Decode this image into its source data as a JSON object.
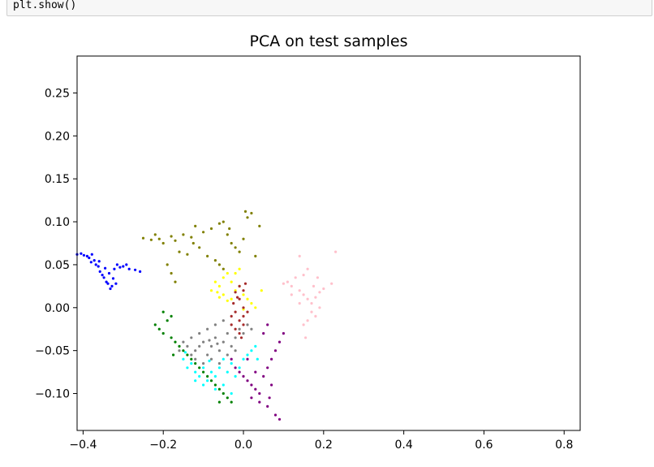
{
  "code": {
    "line": "plt.show()"
  },
  "chart_data": {
    "type": "scatter",
    "title": "PCA on test samples",
    "xlabel": "",
    "ylabel": "",
    "xlim": [
      -0.415,
      0.84
    ],
    "ylim": [
      -0.143,
      0.293
    ],
    "x_ticks": [
      {
        "value": -0.4,
        "label": "−0.4"
      },
      {
        "value": -0.2,
        "label": "−0.2"
      },
      {
        "value": 0.0,
        "label": "0.0"
      },
      {
        "value": 0.2,
        "label": "0.2"
      },
      {
        "value": 0.4,
        "label": "0.4"
      },
      {
        "value": 0.6,
        "label": "0.6"
      },
      {
        "value": 0.8,
        "label": "0.8"
      }
    ],
    "y_ticks": [
      {
        "value": -0.1,
        "label": "−0.10"
      },
      {
        "value": -0.05,
        "label": "−0.05"
      },
      {
        "value": 0.0,
        "label": "0.00"
      },
      {
        "value": 0.05,
        "label": "0.05"
      },
      {
        "value": 0.1,
        "label": "0.10"
      },
      {
        "value": 0.15,
        "label": "0.15"
      },
      {
        "value": 0.2,
        "label": "0.20"
      },
      {
        "value": 0.25,
        "label": "0.25"
      }
    ],
    "series": [
      {
        "name": "blue",
        "color": "#0000ff",
        "points": [
          [
            -0.415,
            0.062
          ],
          [
            -0.405,
            0.063
          ],
          [
            -0.398,
            0.061
          ],
          [
            -0.39,
            0.06
          ],
          [
            -0.385,
            0.058
          ],
          [
            -0.378,
            0.062
          ],
          [
            -0.372,
            0.055
          ],
          [
            -0.368,
            0.05
          ],
          [
            -0.362,
            0.048
          ],
          [
            -0.358,
            0.042
          ],
          [
            -0.352,
            0.038
          ],
          [
            -0.348,
            0.035
          ],
          [
            -0.342,
            0.03
          ],
          [
            -0.338,
            0.028
          ],
          [
            -0.332,
            0.022
          ],
          [
            -0.328,
            0.025
          ],
          [
            -0.322,
            0.045
          ],
          [
            -0.315,
            0.05
          ],
          [
            -0.308,
            0.047
          ],
          [
            -0.3,
            0.048
          ],
          [
            -0.292,
            0.05
          ],
          [
            -0.285,
            0.045
          ],
          [
            -0.27,
            0.044
          ],
          [
            -0.258,
            0.042
          ],
          [
            -0.38,
            0.053
          ],
          [
            -0.36,
            0.054
          ],
          [
            -0.345,
            0.046
          ],
          [
            -0.335,
            0.04
          ],
          [
            -0.325,
            0.034
          ],
          [
            -0.318,
            0.028
          ]
        ]
      },
      {
        "name": "olive",
        "color": "#808000",
        "points": [
          [
            -0.22,
            0.085
          ],
          [
            -0.21,
            0.08
          ],
          [
            -0.2,
            0.075
          ],
          [
            -0.18,
            0.083
          ],
          [
            -0.17,
            0.078
          ],
          [
            -0.15,
            0.085
          ],
          [
            -0.13,
            0.082
          ],
          [
            -0.12,
            0.095
          ],
          [
            -0.1,
            0.088
          ],
          [
            -0.08,
            0.092
          ],
          [
            -0.06,
            0.098
          ],
          [
            -0.05,
            0.1
          ],
          [
            -0.04,
            0.085
          ],
          [
            -0.03,
            0.075
          ],
          [
            -0.02,
            0.07
          ],
          [
            -0.01,
            0.065
          ],
          [
            0.0,
            0.08
          ],
          [
            0.01,
            0.105
          ],
          [
            0.02,
            0.11
          ],
          [
            0.03,
            0.06
          ],
          [
            0.04,
            0.095
          ],
          [
            -0.16,
            0.065
          ],
          [
            -0.14,
            0.062
          ],
          [
            -0.11,
            0.07
          ],
          [
            -0.09,
            0.06
          ],
          [
            -0.07,
            0.055
          ],
          [
            -0.06,
            0.05
          ],
          [
            -0.05,
            0.045
          ],
          [
            -0.18,
            0.04
          ],
          [
            -0.17,
            0.03
          ],
          [
            -0.19,
            0.05
          ],
          [
            -0.25,
            0.081
          ],
          [
            -0.23,
            0.079
          ],
          [
            0.005,
            0.112
          ],
          [
            -0.035,
            0.092
          ],
          [
            -0.125,
            0.075
          ]
        ]
      },
      {
        "name": "pink",
        "color": "#ffc0cb",
        "points": [
          [
            0.1,
            0.028
          ],
          [
            0.11,
            0.03
          ],
          [
            0.12,
            0.025
          ],
          [
            0.13,
            0.035
          ],
          [
            0.14,
            0.02
          ],
          [
            0.15,
            0.015
          ],
          [
            0.16,
            0.01
          ],
          [
            0.17,
            0.005
          ],
          [
            0.18,
            0.012
          ],
          [
            0.19,
            0.018
          ],
          [
            0.2,
            0.022
          ],
          [
            0.15,
            0.038
          ],
          [
            0.16,
            0.045
          ],
          [
            0.14,
            0.06
          ],
          [
            0.17,
            -0.005
          ],
          [
            0.18,
            -0.01
          ],
          [
            0.16,
            -0.015
          ],
          [
            0.15,
            -0.02
          ],
          [
            0.19,
            0.0
          ],
          [
            0.22,
            0.028
          ],
          [
            0.23,
            0.065
          ],
          [
            0.12,
            0.015
          ],
          [
            0.14,
            0.005
          ],
          [
            0.155,
            -0.035
          ],
          [
            0.175,
            0.025
          ],
          [
            0.185,
            0.035
          ]
        ]
      },
      {
        "name": "yellow",
        "color": "#ffff00",
        "points": [
          [
            -0.08,
            0.02
          ],
          [
            -0.07,
            0.03
          ],
          [
            -0.06,
            0.025
          ],
          [
            -0.05,
            0.035
          ],
          [
            -0.04,
            0.04
          ],
          [
            -0.03,
            0.03
          ],
          [
            -0.02,
            0.02
          ],
          [
            -0.01,
            0.025
          ],
          [
            0.0,
            0.015
          ],
          [
            0.01,
            0.01
          ],
          [
            0.02,
            0.005
          ],
          [
            0.03,
            0.0
          ],
          [
            -0.05,
            0.015
          ],
          [
            -0.06,
            0.012
          ],
          [
            -0.04,
            0.008
          ],
          [
            -0.03,
            0.01
          ],
          [
            -0.02,
            0.04
          ],
          [
            -0.01,
            0.045
          ],
          [
            0.045,
            0.02
          ],
          [
            0.0,
            -0.002
          ],
          [
            -0.065,
            0.018
          ]
        ]
      },
      {
        "name": "brown",
        "color": "#a52a2a",
        "points": [
          [
            -0.01,
            0.025
          ],
          [
            0.0,
            0.02
          ],
          [
            -0.02,
            0.018
          ],
          [
            -0.01,
            0.01
          ],
          [
            0.0,
            0.0
          ],
          [
            -0.02,
            -0.005
          ],
          [
            -0.03,
            -0.01
          ],
          [
            -0.01,
            -0.015
          ],
          [
            0.0,
            -0.02
          ],
          [
            -0.02,
            -0.025
          ],
          [
            -0.03,
            -0.02
          ],
          [
            -0.01,
            -0.03
          ],
          [
            0.0,
            -0.01
          ],
          [
            -0.015,
            0.012
          ],
          [
            -0.025,
            0.005
          ],
          [
            0.005,
            0.028
          ],
          [
            -0.005,
            -0.035
          ],
          [
            0.01,
            -0.005
          ]
        ]
      },
      {
        "name": "gray",
        "color": "#808080",
        "points": [
          [
            -0.15,
            -0.04
          ],
          [
            -0.14,
            -0.045
          ],
          [
            -0.13,
            -0.035
          ],
          [
            -0.12,
            -0.05
          ],
          [
            -0.11,
            -0.03
          ],
          [
            -0.1,
            -0.04
          ],
          [
            -0.09,
            -0.055
          ],
          [
            -0.08,
            -0.045
          ],
          [
            -0.07,
            -0.035
          ],
          [
            -0.06,
            -0.05
          ],
          [
            -0.05,
            -0.04
          ],
          [
            -0.04,
            -0.03
          ],
          [
            -0.03,
            -0.045
          ],
          [
            -0.02,
            -0.035
          ],
          [
            -0.01,
            -0.025
          ],
          [
            0.0,
            -0.03
          ],
          [
            0.01,
            -0.02
          ],
          [
            0.02,
            -0.025
          ],
          [
            -0.12,
            -0.06
          ],
          [
            -0.1,
            -0.065
          ],
          [
            -0.08,
            -0.06
          ],
          [
            -0.06,
            -0.065
          ],
          [
            -0.04,
            -0.055
          ],
          [
            -0.02,
            -0.05
          ],
          [
            -0.09,
            -0.025
          ],
          [
            -0.07,
            -0.02
          ],
          [
            -0.05,
            -0.015
          ],
          [
            -0.16,
            -0.05
          ],
          [
            -0.13,
            -0.055
          ],
          [
            -0.11,
            -0.045
          ],
          [
            -0.085,
            -0.038
          ],
          [
            -0.065,
            -0.042
          ]
        ]
      },
      {
        "name": "cyan",
        "color": "#00ffff",
        "points": [
          [
            -0.15,
            -0.06
          ],
          [
            -0.14,
            -0.07
          ],
          [
            -0.13,
            -0.065
          ],
          [
            -0.12,
            -0.075
          ],
          [
            -0.11,
            -0.08
          ],
          [
            -0.1,
            -0.07
          ],
          [
            -0.09,
            -0.085
          ],
          [
            -0.08,
            -0.075
          ],
          [
            -0.07,
            -0.08
          ],
          [
            -0.06,
            -0.07
          ],
          [
            -0.05,
            -0.06
          ],
          [
            -0.04,
            -0.075
          ],
          [
            -0.03,
            -0.065
          ],
          [
            -0.02,
            -0.08
          ],
          [
            -0.01,
            -0.07
          ],
          [
            0.0,
            -0.06
          ],
          [
            0.01,
            -0.055
          ],
          [
            0.02,
            -0.05
          ],
          [
            0.03,
            -0.045
          ],
          [
            -0.07,
            -0.095
          ],
          [
            -0.05,
            -0.09
          ],
          [
            -0.1,
            -0.09
          ],
          [
            -0.03,
            -0.1
          ],
          [
            -0.12,
            -0.085
          ],
          [
            -0.145,
            -0.052
          ],
          [
            0.035,
            -0.06
          ],
          [
            -0.085,
            -0.062
          ]
        ]
      },
      {
        "name": "green",
        "color": "#008000",
        "points": [
          [
            -0.22,
            -0.02
          ],
          [
            -0.21,
            -0.025
          ],
          [
            -0.2,
            -0.03
          ],
          [
            -0.19,
            -0.015
          ],
          [
            -0.18,
            -0.035
          ],
          [
            -0.17,
            -0.04
          ],
          [
            -0.16,
            -0.045
          ],
          [
            -0.15,
            -0.05
          ],
          [
            -0.14,
            -0.055
          ],
          [
            -0.13,
            -0.06
          ],
          [
            -0.12,
            -0.065
          ],
          [
            -0.11,
            -0.07
          ],
          [
            -0.1,
            -0.075
          ],
          [
            -0.09,
            -0.08
          ],
          [
            -0.08,
            -0.085
          ],
          [
            -0.07,
            -0.09
          ],
          [
            -0.06,
            -0.095
          ],
          [
            -0.05,
            -0.1
          ],
          [
            -0.04,
            -0.105
          ],
          [
            -0.03,
            -0.11
          ],
          [
            -0.2,
            -0.005
          ],
          [
            -0.18,
            -0.01
          ],
          [
            -0.06,
            -0.11
          ],
          [
            -0.175,
            -0.055
          ]
        ]
      },
      {
        "name": "purple",
        "color": "#800080",
        "points": [
          [
            -0.03,
            -0.06
          ],
          [
            -0.02,
            -0.07
          ],
          [
            -0.01,
            -0.075
          ],
          [
            0.0,
            -0.08
          ],
          [
            0.01,
            -0.085
          ],
          [
            0.02,
            -0.09
          ],
          [
            0.03,
            -0.095
          ],
          [
            0.04,
            -0.1
          ],
          [
            0.05,
            -0.08
          ],
          [
            0.06,
            -0.07
          ],
          [
            0.07,
            -0.06
          ],
          [
            0.08,
            -0.05
          ],
          [
            0.09,
            -0.04
          ],
          [
            0.05,
            -0.03
          ],
          [
            0.06,
            -0.02
          ],
          [
            0.1,
            -0.03
          ],
          [
            0.04,
            -0.11
          ],
          [
            0.06,
            -0.115
          ],
          [
            0.08,
            -0.125
          ],
          [
            0.09,
            -0.13
          ],
          [
            0.01,
            -0.06
          ],
          [
            0.03,
            -0.075
          ],
          [
            0.07,
            -0.09
          ],
          [
            0.065,
            -0.105
          ],
          [
            0.02,
            -0.105
          ]
        ]
      }
    ]
  }
}
